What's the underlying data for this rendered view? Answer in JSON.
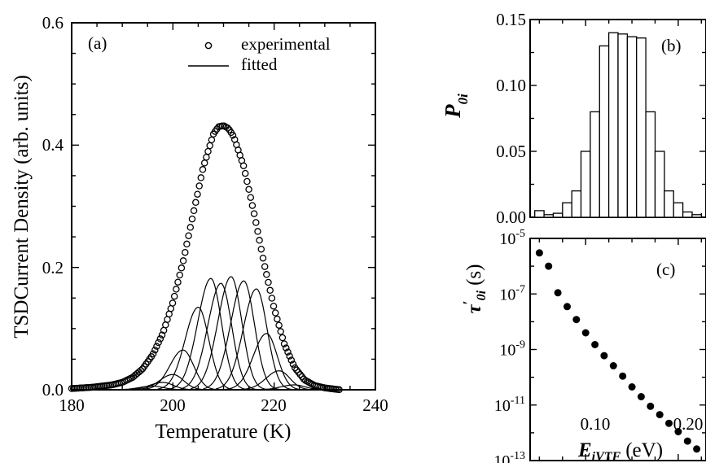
{
  "chart_data": [
    {
      "panel": "(a)",
      "type": "line",
      "xlabel": "Temperature (K)",
      "ylabel": "TSDCurrent Density (arb. units)",
      "xlim": [
        180,
        240
      ],
      "ylim": [
        0,
        0.6
      ],
      "xticks": [
        "180",
        "200",
        "220",
        "240"
      ],
      "yticks": [
        "0.0",
        "0.2",
        "0.4",
        "0.6"
      ],
      "grid": false,
      "legend_position": "top-right",
      "series": [
        {
          "name": "experimental",
          "marker": "open-circle",
          "x": [
            180,
            184,
            188,
            190,
            192,
            194,
            196,
            198,
            200,
            202,
            204,
            206,
            208,
            209,
            210,
            211,
            212,
            214,
            216,
            218,
            220,
            222,
            224,
            226,
            228,
            230,
            232,
            233
          ],
          "y": [
            0.002,
            0.004,
            0.008,
            0.012,
            0.02,
            0.034,
            0.057,
            0.092,
            0.143,
            0.209,
            0.287,
            0.364,
            0.418,
            0.43,
            0.432,
            0.427,
            0.414,
            0.365,
            0.29,
            0.207,
            0.133,
            0.075,
            0.037,
            0.016,
            0.007,
            0.003,
            0.001,
            0.0
          ]
        },
        {
          "name": "fitted",
          "line": "solid",
          "components": [
            {
              "center": 196,
              "amplitude": 0.006
            },
            {
              "center": 198,
              "amplitude": 0.012
            },
            {
              "center": 200,
              "amplitude": 0.025
            },
            {
              "center": 202,
              "amplitude": 0.065
            },
            {
              "center": 205,
              "amplitude": 0.135
            },
            {
              "center": 207.5,
              "amplitude": 0.182
            },
            {
              "center": 209.5,
              "amplitude": 0.174
            },
            {
              "center": 211.5,
              "amplitude": 0.185
            },
            {
              "center": 214,
              "amplitude": 0.178
            },
            {
              "center": 216.5,
              "amplitude": 0.165
            },
            {
              "center": 218.5,
              "amplitude": 0.092
            },
            {
              "center": 221,
              "amplitude": 0.031
            },
            {
              "center": 224,
              "amplitude": 0.008
            }
          ]
        }
      ]
    },
    {
      "panel": "(b)",
      "type": "bar",
      "ylabel": "P",
      "ylabel_subscript": "0i",
      "xlim": [
        0.04,
        0.23
      ],
      "ylim": [
        0,
        0.15
      ],
      "yticks": [
        "0.00",
        "0.05",
        "0.10",
        "0.15"
      ],
      "bar_width": 0.01,
      "categories": [
        0.05,
        0.06,
        0.07,
        0.08,
        0.09,
        0.1,
        0.11,
        0.12,
        0.13,
        0.14,
        0.15,
        0.16,
        0.17,
        0.18,
        0.19,
        0.2,
        0.21,
        0.22
      ],
      "values": [
        0.005,
        0.002,
        0.003,
        0.011,
        0.02,
        0.05,
        0.08,
        0.13,
        0.14,
        0.139,
        0.137,
        0.136,
        0.08,
        0.05,
        0.02,
        0.011,
        0.004,
        0.002
      ]
    },
    {
      "panel": "(c)",
      "type": "scatter",
      "xlabel": "E",
      "xlabel_subscript": "iVTF",
      "xlabel_unit": "(eV)",
      "ylabel": "τ",
      "ylabel_prime": "′",
      "ylabel_subscript": "0i",
      "ylabel_unit": "(s)",
      "xlim": [
        0.04,
        0.23
      ],
      "xticks": [
        "0.10",
        "0.20"
      ],
      "yscale": "log",
      "ylim": [
        1e-13,
        1e-05
      ],
      "ytick_mantissa": "10",
      "ytick_exponents": [
        "-13",
        "-11",
        "-9",
        "-7",
        "-5"
      ],
      "x": [
        0.05,
        0.06,
        0.07,
        0.08,
        0.09,
        0.1,
        0.11,
        0.12,
        0.13,
        0.14,
        0.15,
        0.16,
        0.17,
        0.18,
        0.19,
        0.2,
        0.21,
        0.22
      ],
      "y": [
        3e-06,
        1e-06,
        1.1e-07,
        3.5e-08,
        1.2e-08,
        4e-09,
        1.5e-09,
        6e-10,
        2.6e-10,
        1.1e-10,
        4.5e-11,
        2e-11,
        9e-12,
        4.5e-12,
        2.2e-12,
        1.1e-12,
        5e-13,
        2.6e-13
      ]
    }
  ]
}
